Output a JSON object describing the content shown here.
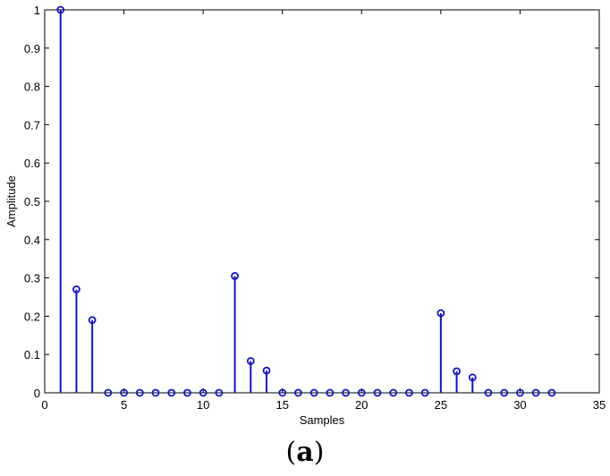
{
  "chart_data": {
    "type": "stem",
    "title": "",
    "xlabel": "Samples",
    "ylabel": "Amplitude",
    "xlim": [
      0,
      35
    ],
    "ylim": [
      0,
      1
    ],
    "xticks": [
      0,
      5,
      10,
      15,
      20,
      25,
      30,
      35
    ],
    "yticks": [
      0,
      0.1,
      0.2,
      0.3,
      0.4,
      0.5,
      0.6,
      0.7,
      0.8,
      0.9,
      1
    ],
    "grid": false,
    "color": "#1414c8",
    "x": [
      1,
      2,
      3,
      4,
      5,
      6,
      7,
      8,
      9,
      10,
      11,
      12,
      13,
      14,
      15,
      16,
      17,
      18,
      19,
      20,
      21,
      22,
      23,
      24,
      25,
      26,
      27,
      28,
      29,
      30,
      31,
      32
    ],
    "y": [
      1.0,
      0.27,
      0.19,
      0,
      0,
      0,
      0,
      0,
      0,
      0,
      0,
      0.305,
      0.083,
      0.058,
      0,
      0,
      0,
      0,
      0,
      0,
      0,
      0,
      0,
      0,
      0.208,
      0.056,
      0.04,
      0,
      0,
      0,
      0,
      0
    ]
  },
  "caption": {
    "open": "(",
    "letter": "a",
    "close": ")"
  }
}
